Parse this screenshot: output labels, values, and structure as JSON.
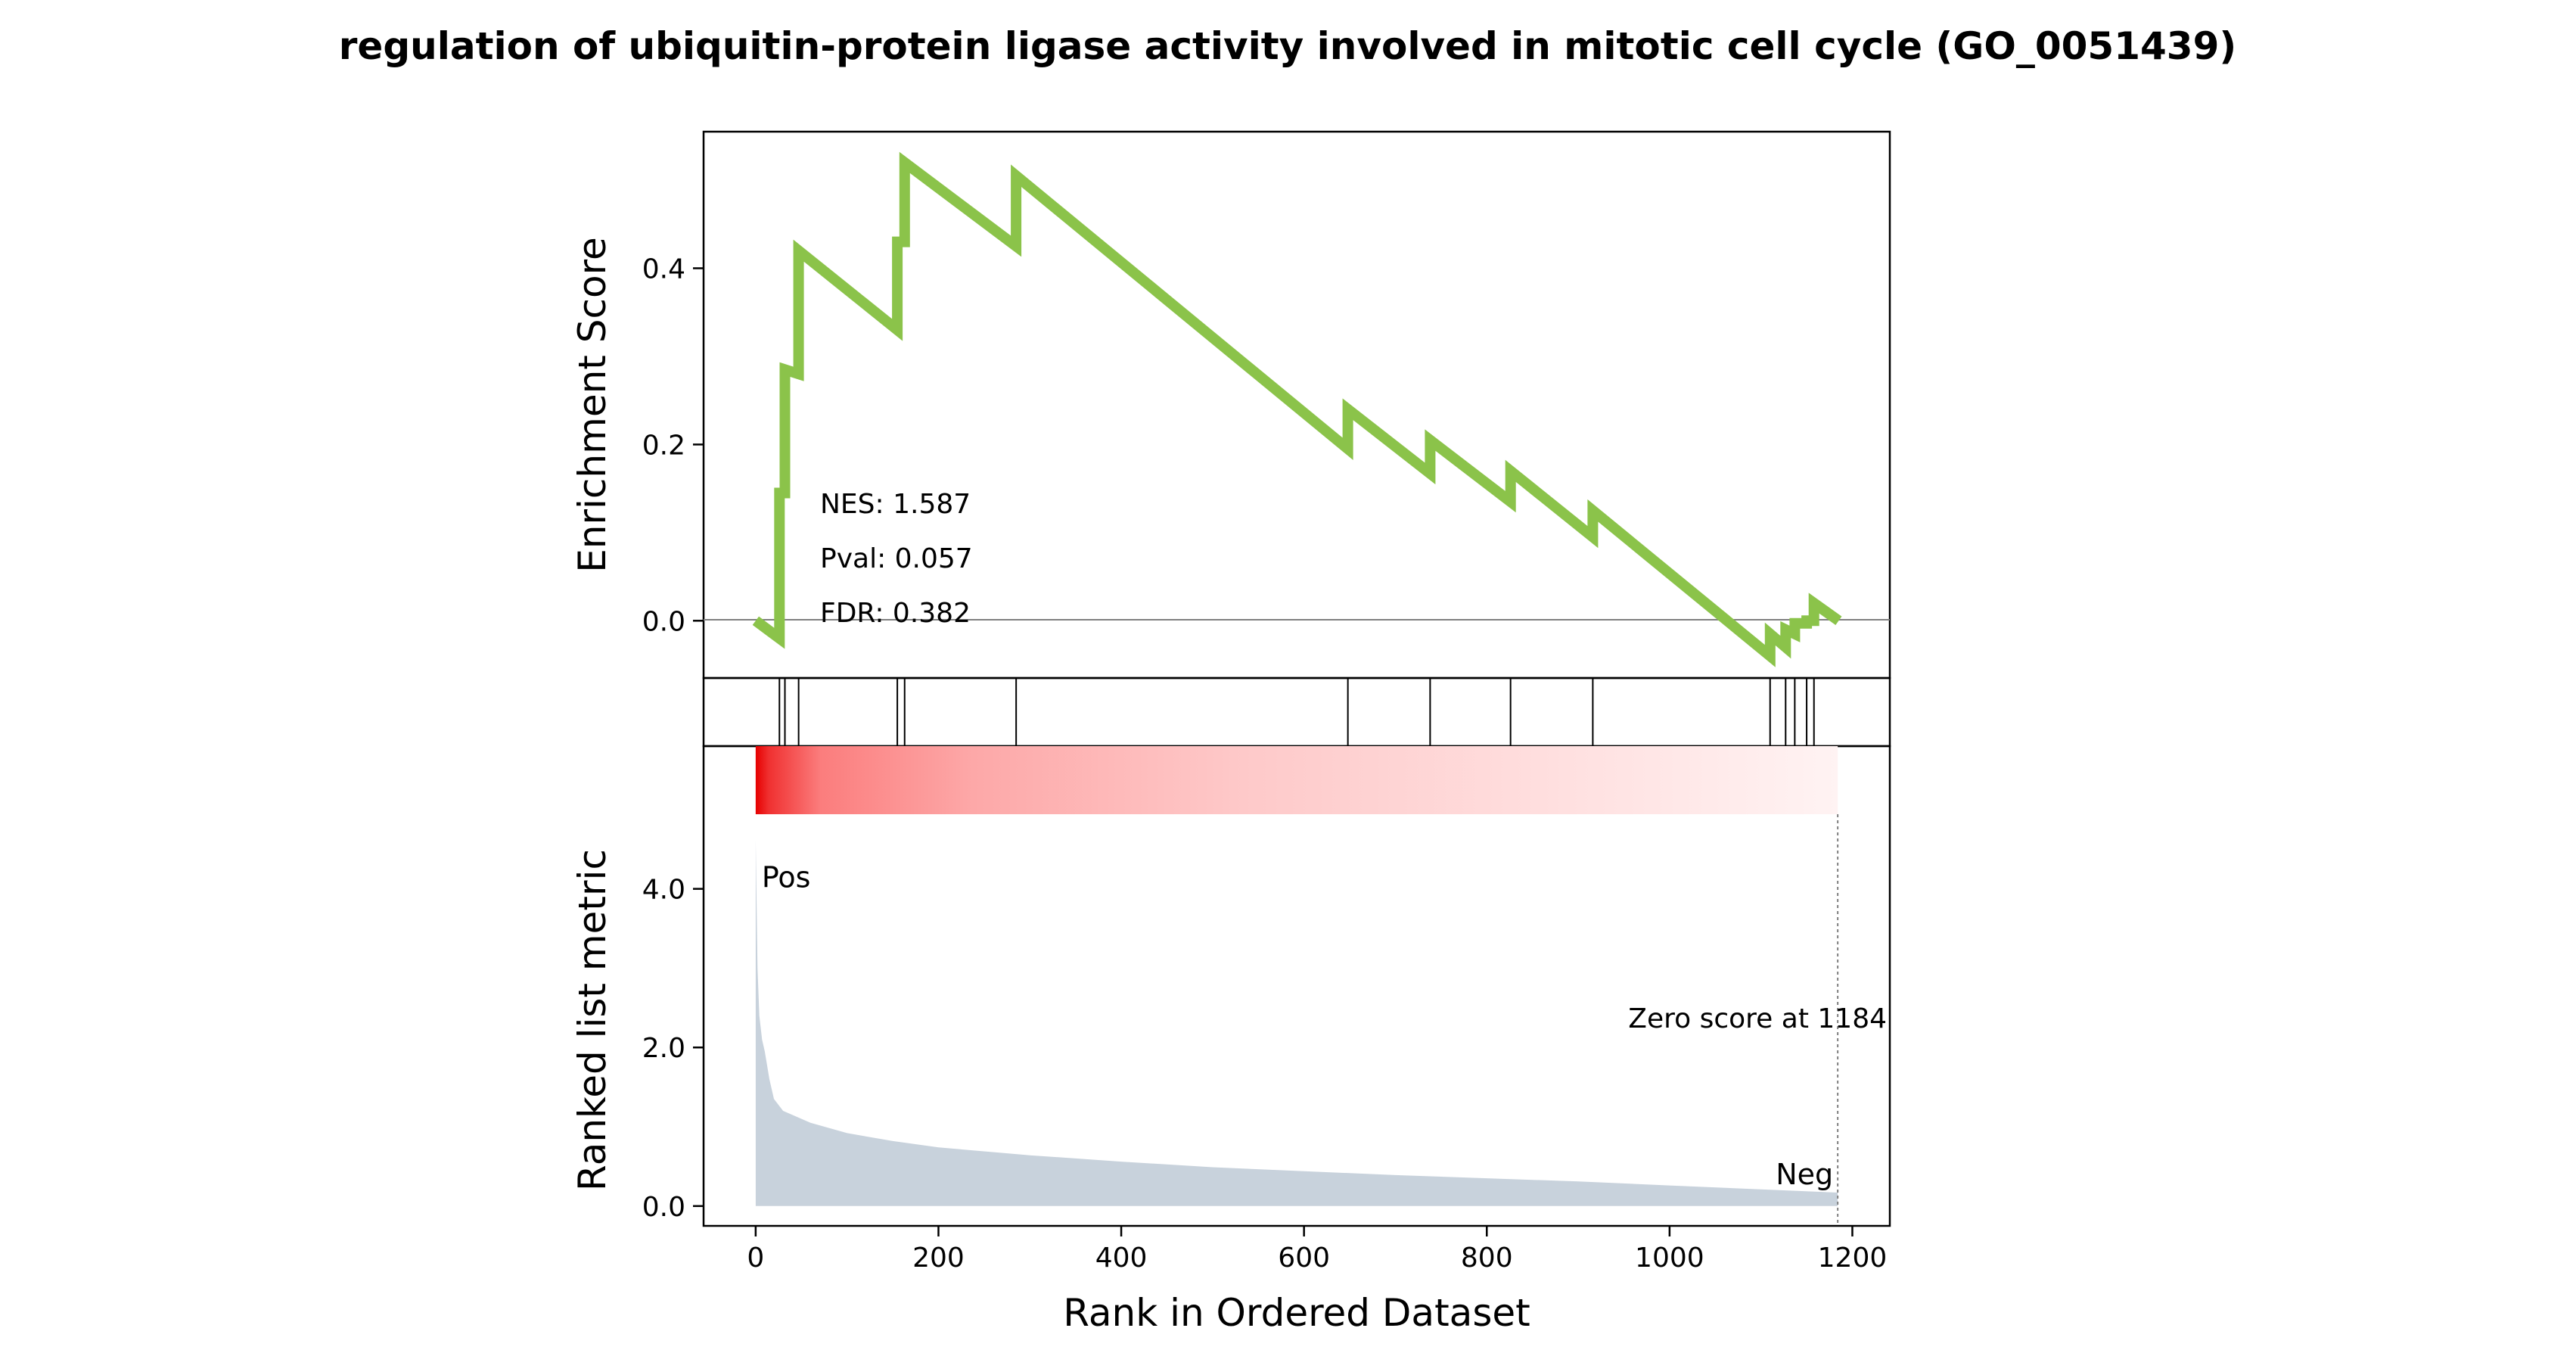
{
  "chart_data": {
    "type": "line",
    "title": "regulation of ubiquitin-protein ligase activity involved in mitotic cell cycle (GO_0051439)",
    "xlabel": "Rank in Ordered Dataset",
    "xlim": [
      -57,
      1241
    ],
    "xticks": [
      0,
      200,
      400,
      600,
      800,
      1000,
      1200
    ],
    "x_tick_labels": [
      "0",
      "200",
      "400",
      "600",
      "800",
      "1000",
      "1200"
    ],
    "legend": "none",
    "panels": {
      "enrichment": {
        "ylabel": "Enrichment Score",
        "ylim": [
          -0.065,
          0.555
        ],
        "yticks": [
          0.0,
          0.2,
          0.4
        ],
        "y_tick_labels": [
          "0.0",
          "0.2",
          "0.4"
        ],
        "zero_line": true,
        "line_color": "#8bc34a",
        "stats": [
          "NES: 1.587",
          "Pval: 0.057",
          "FDR: 0.382"
        ],
        "points": [
          [
            0,
            0.0
          ],
          [
            26,
            -0.02
          ],
          [
            26,
            0.145
          ],
          [
            32,
            0.145
          ],
          [
            32,
            0.285
          ],
          [
            47,
            0.28
          ],
          [
            47,
            0.42
          ],
          [
            155,
            0.33
          ],
          [
            155,
            0.43
          ],
          [
            163,
            0.43
          ],
          [
            163,
            0.52
          ],
          [
            285,
            0.425
          ],
          [
            285,
            0.505
          ],
          [
            648,
            0.195
          ],
          [
            648,
            0.24
          ],
          [
            738,
            0.167
          ],
          [
            738,
            0.205
          ],
          [
            826,
            0.135
          ],
          [
            826,
            0.17
          ],
          [
            916,
            0.095
          ],
          [
            916,
            0.125
          ],
          [
            1110,
            -0.04
          ],
          [
            1110,
            -0.015
          ],
          [
            1127,
            -0.03
          ],
          [
            1127,
            -0.01
          ],
          [
            1137,
            -0.015
          ],
          [
            1137,
            -0.003
          ],
          [
            1150,
            -0.003
          ],
          [
            1150,
            0.0
          ],
          [
            1158,
            0.0
          ],
          [
            1158,
            0.02
          ],
          [
            1185,
            0.0
          ]
        ]
      },
      "hits": {
        "positions": [
          26,
          32,
          47,
          155,
          163,
          285,
          648,
          738,
          826,
          916,
          1110,
          1127,
          1137,
          1150,
          1158
        ]
      },
      "ranked": {
        "ylabel": "Ranked list metric",
        "ylim": [
          -0.25,
          5.8
        ],
        "yticks": [
          0.0,
          2.0,
          4.0
        ],
        "y_tick_labels": [
          "0.0",
          "2.0",
          "4.0"
        ],
        "fill_color": "#c8d2dc",
        "pos_label": "Pos",
        "neg_label": "Neg",
        "pos_color": "#e60000",
        "neg_color": "#0000e6",
        "zero_score_label": "Zero score at 1184",
        "zero_score_rank": 1184,
        "metric": [
          [
            0,
            4.62
          ],
          [
            2,
            3.0
          ],
          [
            4,
            2.4
          ],
          [
            7,
            2.1
          ],
          [
            10,
            1.95
          ],
          [
            15,
            1.6
          ],
          [
            20,
            1.35
          ],
          [
            30,
            1.2
          ],
          [
            60,
            1.05
          ],
          [
            100,
            0.92
          ],
          [
            150,
            0.82
          ],
          [
            200,
            0.74
          ],
          [
            300,
            0.64
          ],
          [
            400,
            0.56
          ],
          [
            500,
            0.49
          ],
          [
            600,
            0.44
          ],
          [
            700,
            0.39
          ],
          [
            800,
            0.35
          ],
          [
            900,
            0.31
          ],
          [
            1000,
            0.26
          ],
          [
            1100,
            0.21
          ],
          [
            1184,
            0.17
          ]
        ]
      }
    }
  }
}
